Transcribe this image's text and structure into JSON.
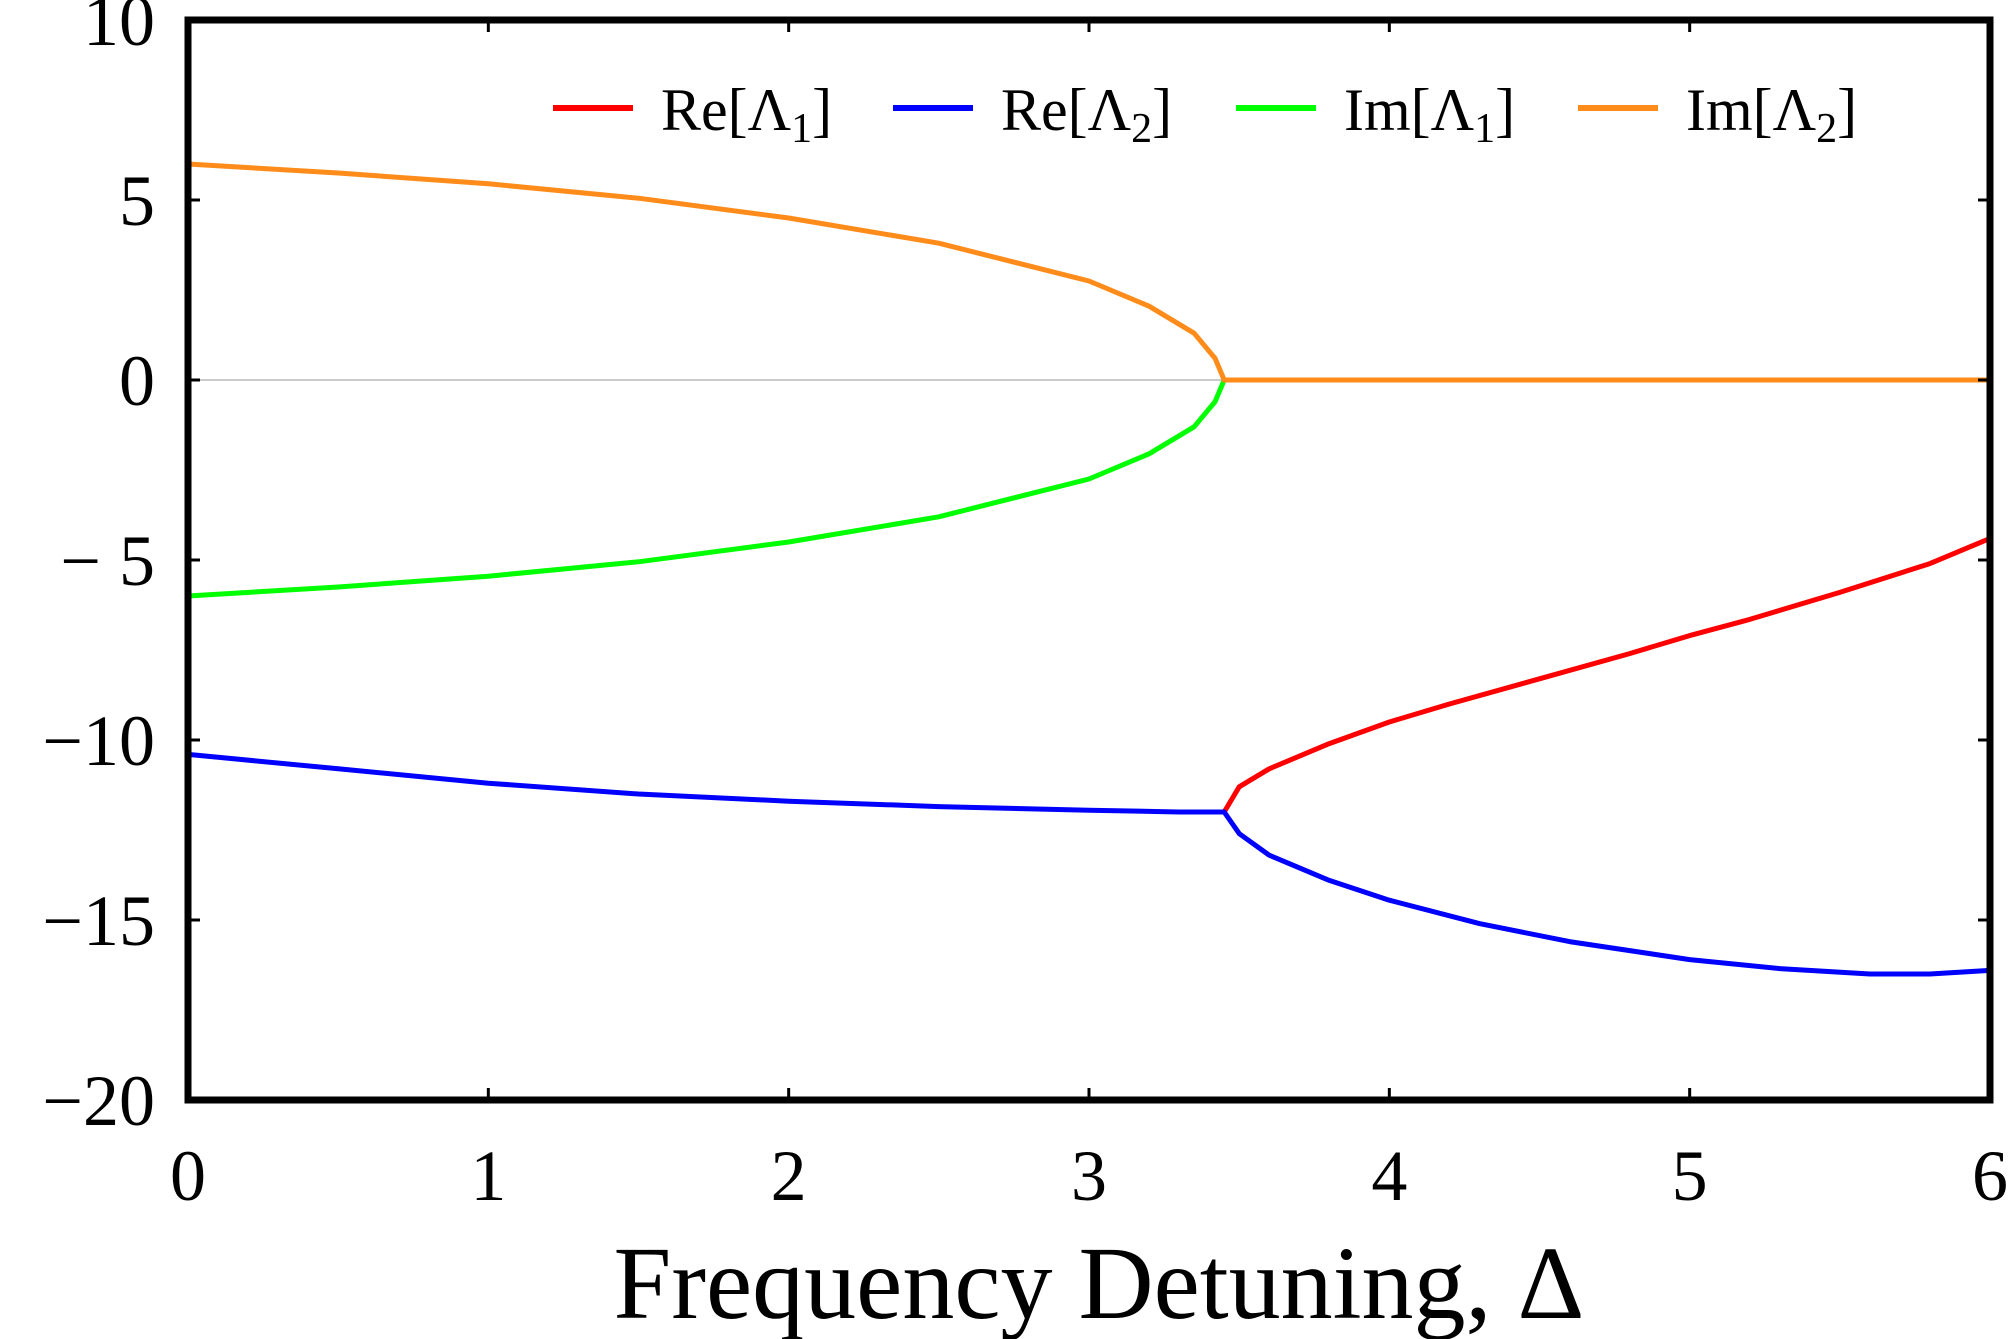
{
  "chart_data": {
    "type": "line",
    "title": "",
    "xlabel": "Frequency  Detuning, Δ",
    "ylabel": "",
    "xlim": [
      0,
      6
    ],
    "ylim": [
      -20,
      10
    ],
    "xticks": [
      0,
      1,
      2,
      3,
      4,
      5,
      6
    ],
    "xtick_labels": [
      "0",
      "1",
      "2",
      "3",
      "4",
      "5",
      "6"
    ],
    "yticks": [
      10,
      5,
      0,
      -5,
      -10,
      -15,
      -20
    ],
    "ytick_labels": [
      "10",
      "5",
      "0",
      "− 5",
      "−10",
      "−15",
      "−20"
    ],
    "grid": false,
    "zero_line": true,
    "legend_position": "top",
    "series": [
      {
        "name": "Re[Λ1]",
        "color": "#ff0000",
        "x": [
          3.45,
          3.5,
          3.6,
          3.8,
          4.0,
          4.2,
          4.5,
          4.8,
          5.0,
          5.2,
          5.5,
          5.8,
          6.0
        ],
        "y": [
          -12.0,
          -11.3,
          -10.8,
          -10.1,
          -9.5,
          -9.0,
          -8.3,
          -7.6,
          -7.1,
          -6.65,
          -5.9,
          -5.1,
          -4.4
        ]
      },
      {
        "name": "Re[Λ2]",
        "color": "#0000ff",
        "x": [
          0,
          0.5,
          1.0,
          1.5,
          2.0,
          2.5,
          3.0,
          3.3,
          3.45,
          3.5,
          3.6,
          3.8,
          4.0,
          4.3,
          4.6,
          5.0,
          5.3,
          5.6,
          5.8,
          6.0
        ],
        "y": [
          -10.4,
          -10.8,
          -11.2,
          -11.5,
          -11.7,
          -11.85,
          -11.95,
          -12.0,
          -12.0,
          -12.6,
          -13.2,
          -13.9,
          -14.45,
          -15.1,
          -15.6,
          -16.1,
          -16.35,
          -16.5,
          -16.5,
          -16.4
        ]
      },
      {
        "name": "Im[Λ1]",
        "color": "#00ff00",
        "x": [
          0,
          0.5,
          1.0,
          1.5,
          2.0,
          2.5,
          3.0,
          3.2,
          3.35,
          3.42,
          3.45
        ],
        "y": [
          -6.0,
          -5.75,
          -5.45,
          -5.05,
          -4.5,
          -3.8,
          -2.75,
          -2.05,
          -1.3,
          -0.6,
          0.0
        ]
      },
      {
        "name": "Im[Λ2]",
        "color": "#ff8c1a",
        "x": [
          0,
          0.5,
          1.0,
          1.5,
          2.0,
          2.5,
          3.0,
          3.2,
          3.35,
          3.42,
          3.45,
          4.0,
          5.0,
          6.0
        ],
        "y": [
          6.0,
          5.75,
          5.45,
          5.05,
          4.5,
          3.8,
          2.75,
          2.05,
          1.3,
          0.6,
          0.0,
          0.0,
          0.0,
          0.0
        ]
      }
    ]
  }
}
